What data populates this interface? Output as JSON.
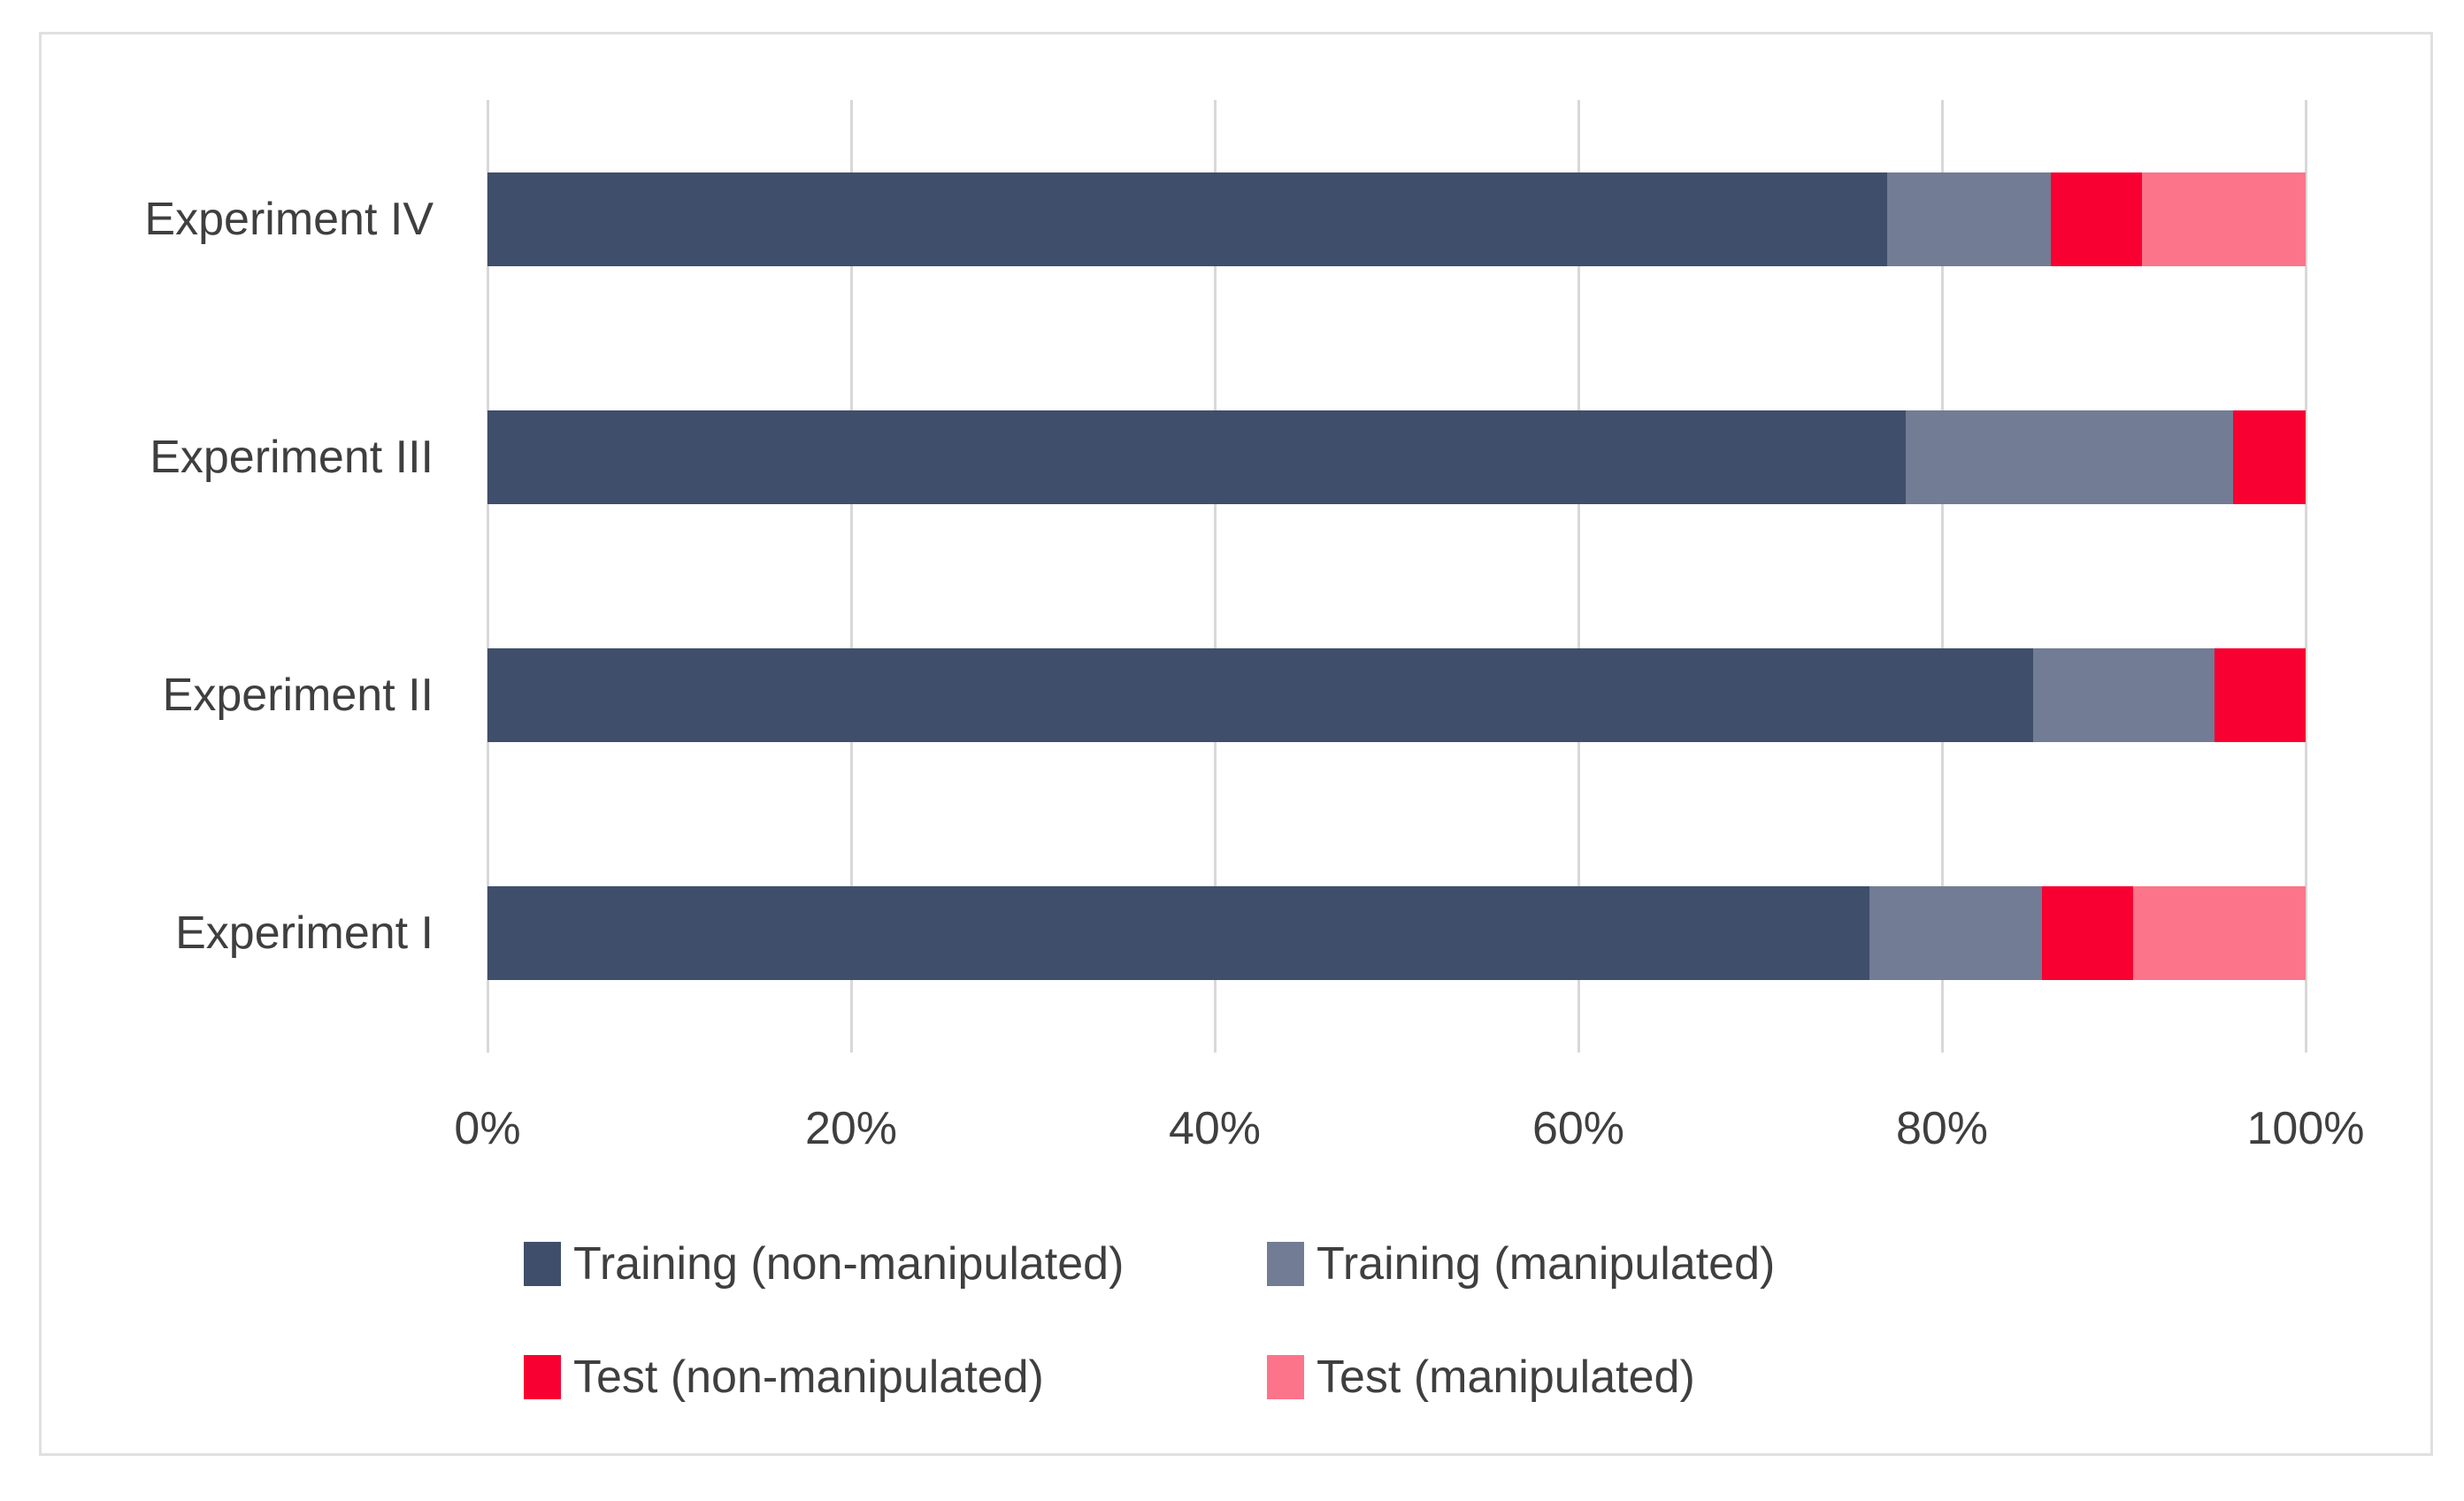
{
  "chart_data": {
    "type": "bar",
    "orientation": "horizontal",
    "stacked": true,
    "title": "",
    "xlabel": "",
    "ylabel": "",
    "categories": [
      "Experiment IV",
      "Experiment III",
      "Experiment II",
      "Experiment I"
    ],
    "series": [
      {
        "name": "Training (non-manipulated)",
        "color": "#3f4e6b",
        "values": [
          77,
          78,
          85,
          76
        ]
      },
      {
        "name": "Training (manipulated)",
        "color": "#727c94",
        "values": [
          9,
          18,
          10,
          9.5
        ]
      },
      {
        "name": "Test (non-manipulated)",
        "color": "#f80031",
        "values": [
          5,
          4,
          5,
          5
        ]
      },
      {
        "name": "Test (manipulated)",
        "color": "#fc7489",
        "values": [
          9,
          0,
          0,
          9.5
        ]
      }
    ],
    "x_axis": {
      "min": 0,
      "max": 100,
      "unit": "%",
      "tick_labels": [
        "0%",
        "20%",
        "40%",
        "60%",
        "80%",
        "100%"
      ]
    },
    "grid": true,
    "legend_position": "bottom",
    "legend_rows": [
      [
        "Training (non-manipulated)",
        "Training (manipulated)"
      ],
      [
        "Test (non-manipulated)",
        "Test (manipulated)"
      ]
    ]
  },
  "colors": {
    "background": "#ffffff",
    "frame_border": "#e0e0e2",
    "gridline": "#d8d8d8",
    "axis_text": "#3f3f3f"
  }
}
